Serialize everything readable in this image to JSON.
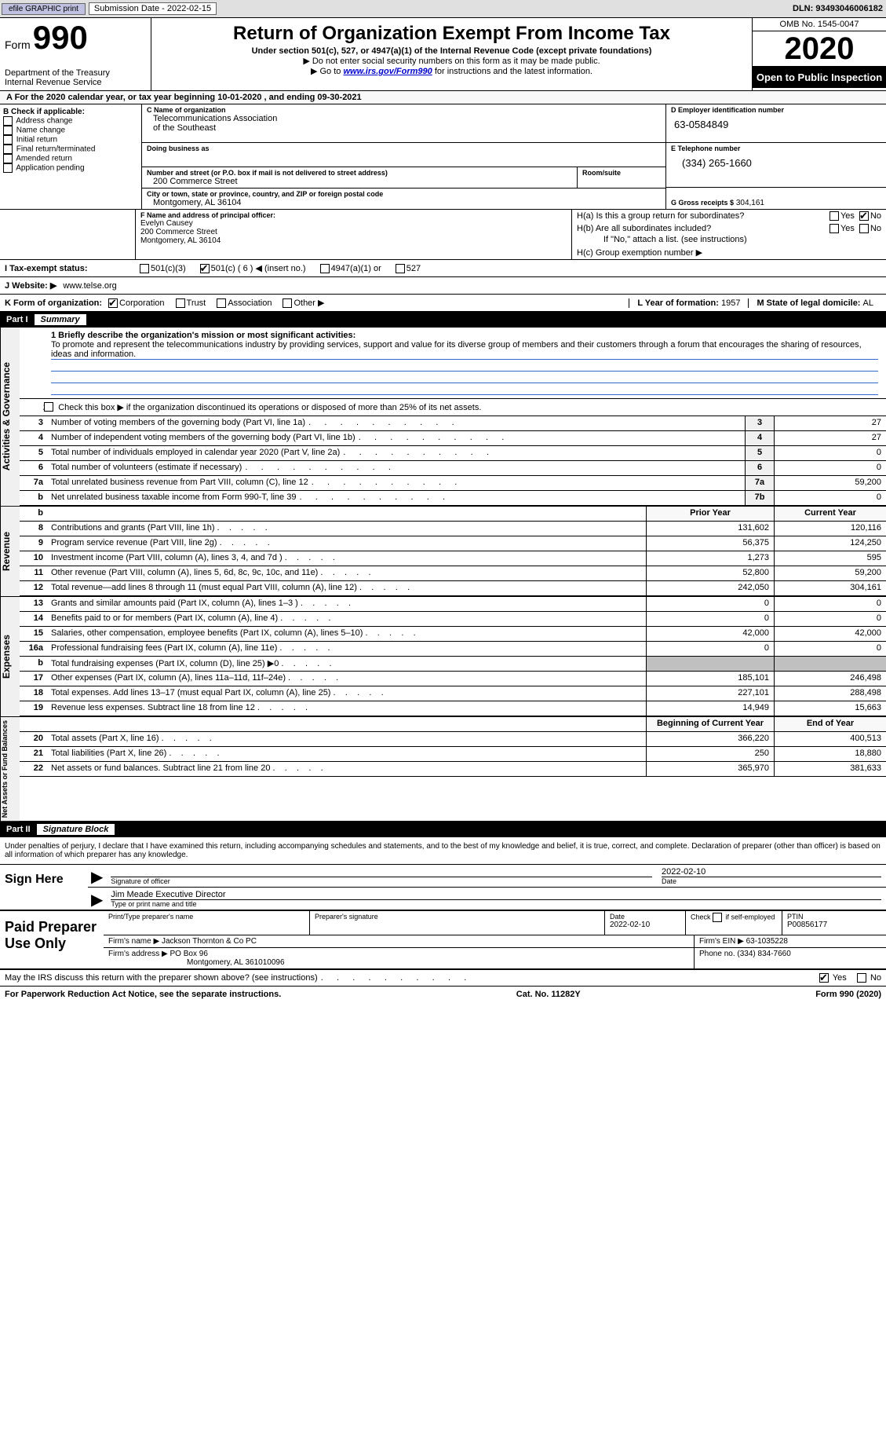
{
  "topbar": {
    "efile": "efile GRAPHIC print",
    "submission_label": "Submission Date - 2022-02-15",
    "dln": "DLN: 93493046006182"
  },
  "header": {
    "form_label": "Form",
    "form_number": "990",
    "dept1": "Department of the Treasury",
    "dept2": "Internal Revenue Service",
    "title": "Return of Organization Exempt From Income Tax",
    "subtitle": "Under section 501(c), 527, or 4947(a)(1) of the Internal Revenue Code (except private foundations)",
    "note1": "▶ Do not enter social security numbers on this form as it may be made public.",
    "note2_prefix": "▶ Go to ",
    "note2_link": "www.irs.gov/Form990",
    "note2_suffix": " for instructions and the latest information.",
    "omb": "OMB No. 1545-0047",
    "year": "2020",
    "public": "Open to Public Inspection"
  },
  "period": {
    "label_a": "A For the 2020 calendar year, or tax year beginning ",
    "begin": "10-01-2020",
    "mid": "   , and ending ",
    "end": "09-30-2021"
  },
  "boxB": {
    "label": "B Check if applicable:",
    "opts": [
      "Address change",
      "Name change",
      "Initial return",
      "Final return/terminated",
      "Amended return",
      "Application pending"
    ]
  },
  "boxC": {
    "name_label": "C Name of organization",
    "name1": "Telecommunications Association",
    "name2": "of the Southeast",
    "dba_label": "Doing business as",
    "addr_label": "Number and street (or P.O. box if mail is not delivered to street address)",
    "room_label": "Room/suite",
    "addr": "200 Commerce Street",
    "city_label": "City or town, state or province, country, and ZIP or foreign postal code",
    "city": "Montgomery, AL  36104"
  },
  "boxD": {
    "label": "D Employer identification number",
    "ein": "63-0584849"
  },
  "boxE": {
    "label": "E Telephone number",
    "phone": "(334) 265-1660"
  },
  "boxG": {
    "label": "G Gross receipts $",
    "amount": "304,161"
  },
  "boxF": {
    "label": "F Name and address of principal officer:",
    "name": "Evelyn Causey",
    "addr1": "200 Commerce Street",
    "addr2": "Montgomery, AL  36104"
  },
  "boxH": {
    "ha_label": "H(a)  Is this a group return for subordinates?",
    "hb_label": "H(b)  Are all subordinates included?",
    "hb_note": "If \"No,\" attach a list. (see instructions)",
    "hc_label": "H(c)  Group exemption number ▶",
    "yes": "Yes",
    "no": "No"
  },
  "boxI": {
    "label": "I   Tax-exempt status:",
    "o1": "501(c)(3)",
    "o2": "501(c) ( 6 ) ◀ (insert no.)",
    "o3": "4947(a)(1) or",
    "o4": "527"
  },
  "boxJ": {
    "label": "J   Website: ▶",
    "val": "www.telse.org"
  },
  "boxK": {
    "label": "K Form of organization:",
    "o1": "Corporation",
    "o2": "Trust",
    "o3": "Association",
    "o4": "Other ▶"
  },
  "boxL": {
    "label": "L Year of formation: ",
    "val": "1957"
  },
  "boxM": {
    "label": "M State of legal domicile: ",
    "val": "AL"
  },
  "part1": {
    "label": "Part I",
    "title": "Summary",
    "line1_label": "1  Briefly describe the organization's mission or most significant activities:",
    "mission": "To promote and represent the telecommunications industry by providing services, support and value for its diverse group of members and their customers through a forum that encourages the sharing of resources, ideas and information.",
    "line2": "Check this box ▶        if the organization discontinued its operations or disposed of more than 25% of its net assets.",
    "side_gov": "Activities & Governance",
    "side_rev": "Revenue",
    "side_exp": "Expenses",
    "side_net": "Net Assets or Fund Balances",
    "prior_year": "Prior Year",
    "current_year": "Current Year",
    "begin_year": "Beginning of Current Year",
    "end_year": "End of Year"
  },
  "lines_gov": [
    {
      "n": "3",
      "d": "Number of voting members of the governing body (Part VI, line 1a)",
      "box": "3",
      "v": "27"
    },
    {
      "n": "4",
      "d": "Number of independent voting members of the governing body (Part VI, line 1b)",
      "box": "4",
      "v": "27"
    },
    {
      "n": "5",
      "d": "Total number of individuals employed in calendar year 2020 (Part V, line 2a)",
      "box": "5",
      "v": "0"
    },
    {
      "n": "6",
      "d": "Total number of volunteers (estimate if necessary)",
      "box": "6",
      "v": "0"
    },
    {
      "n": "7a",
      "d": "Total unrelated business revenue from Part VIII, column (C), line 12",
      "box": "7a",
      "v": "59,200"
    },
    {
      "n": "b",
      "d": "Net unrelated business taxable income from Form 990-T, line 39",
      "box": "7b",
      "v": "0"
    }
  ],
  "lines_rev": [
    {
      "n": "8",
      "d": "Contributions and grants (Part VIII, line 1h)",
      "py": "131,602",
      "cy": "120,116"
    },
    {
      "n": "9",
      "d": "Program service revenue (Part VIII, line 2g)",
      "py": "56,375",
      "cy": "124,250"
    },
    {
      "n": "10",
      "d": "Investment income (Part VIII, column (A), lines 3, 4, and 7d )",
      "py": "1,273",
      "cy": "595"
    },
    {
      "n": "11",
      "d": "Other revenue (Part VIII, column (A), lines 5, 6d, 8c, 9c, 10c, and 11e)",
      "py": "52,800",
      "cy": "59,200"
    },
    {
      "n": "12",
      "d": "Total revenue—add lines 8 through 11 (must equal Part VIII, column (A), line 12)",
      "py": "242,050",
      "cy": "304,161"
    }
  ],
  "lines_exp": [
    {
      "n": "13",
      "d": "Grants and similar amounts paid (Part IX, column (A), lines 1–3 )",
      "py": "0",
      "cy": "0"
    },
    {
      "n": "14",
      "d": "Benefits paid to or for members (Part IX, column (A), line 4)",
      "py": "0",
      "cy": "0"
    },
    {
      "n": "15",
      "d": "Salaries, other compensation, employee benefits (Part IX, column (A), lines 5–10)",
      "py": "42,000",
      "cy": "42,000"
    },
    {
      "n": "16a",
      "d": "Professional fundraising fees (Part IX, column (A), line 11e)",
      "py": "0",
      "cy": "0"
    },
    {
      "n": "b",
      "d": "Total fundraising expenses (Part IX, column (D), line 25) ▶0",
      "py": "",
      "cy": "",
      "shade": true
    },
    {
      "n": "17",
      "d": "Other expenses (Part IX, column (A), lines 11a–11d, 11f–24e)",
      "py": "185,101",
      "cy": "246,498"
    },
    {
      "n": "18",
      "d": "Total expenses. Add lines 13–17 (must equal Part IX, column (A), line 25)",
      "py": "227,101",
      "cy": "288,498"
    },
    {
      "n": "19",
      "d": "Revenue less expenses. Subtract line 18 from line 12",
      "py": "14,949",
      "cy": "15,663"
    }
  ],
  "lines_net": [
    {
      "n": "20",
      "d": "Total assets (Part X, line 16)",
      "py": "366,220",
      "cy": "400,513"
    },
    {
      "n": "21",
      "d": "Total liabilities (Part X, line 26)",
      "py": "250",
      "cy": "18,880"
    },
    {
      "n": "22",
      "d": "Net assets or fund balances. Subtract line 21 from line 20",
      "py": "365,970",
      "cy": "381,633"
    }
  ],
  "part2": {
    "label": "Part II",
    "title": "Signature Block",
    "declaration": "Under penalties of perjury, I declare that I have examined this return, including accompanying schedules and statements, and to the best of my knowledge and belief, it is true, correct, and complete. Declaration of preparer (other than officer) is based on all information of which preparer has any knowledge."
  },
  "sign": {
    "here": "Sign Here",
    "sig_label": "Signature of officer",
    "date_label": "Date",
    "date": "2022-02-10",
    "name": "Jim Meade  Executive Director",
    "name_label": "Type or print name and title"
  },
  "preparer": {
    "title": "Paid Preparer Use Only",
    "print_label": "Print/Type preparer's name",
    "sig_label": "Preparer's signature",
    "date_label": "Date",
    "date": "2022-02-10",
    "check_label": "Check         if self-employed",
    "ptin_label": "PTIN",
    "ptin": "P00856177",
    "firm_name_label": "Firm's name     ▶",
    "firm_name": "Jackson Thornton & Co PC",
    "firm_ein_label": "Firm's EIN ▶",
    "firm_ein": "63-1035228",
    "firm_addr_label": "Firm's address ▶",
    "firm_addr1": "PO Box 96",
    "firm_addr2": "Montgomery, AL  361010096",
    "phone_label": "Phone no.",
    "phone": "(334) 834-7660"
  },
  "footer": {
    "discuss": "May the IRS discuss this return with the preparer shown above? (see instructions)",
    "yes": "Yes",
    "no": "No",
    "paperwork": "For Paperwork Reduction Act Notice, see the separate instructions.",
    "cat": "Cat. No. 11282Y",
    "form": "Form 990 (2020)"
  }
}
